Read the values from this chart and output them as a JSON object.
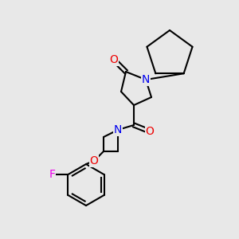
{
  "bg_color": "#e8e8e8",
  "atom_colors": {
    "N": "#0000ee",
    "O": "#ee0000",
    "F": "#ee00ee",
    "C": "#000000"
  },
  "bond_color": "#000000",
  "bond_width": 1.5
}
